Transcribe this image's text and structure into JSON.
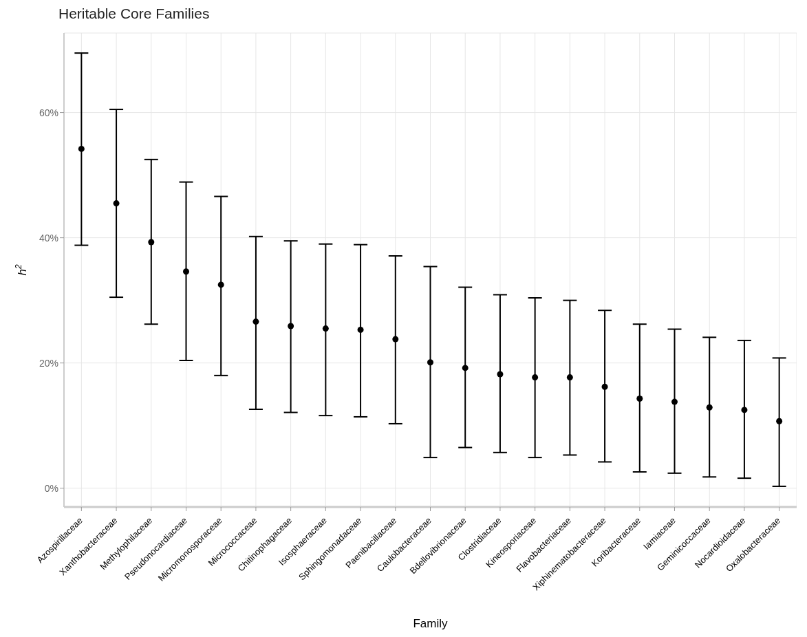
{
  "chart_data": {
    "type": "scatter",
    "title": "Heritable Core Families",
    "xlabel": "Family",
    "ylabel": "h$^{2}$",
    "categories": [
      "Azospirillaceae",
      "Xanthobacteraceae",
      "Methylophilaceae",
      "Pseudonocardiaceae",
      "Micromonosporaceae",
      "Micrococcaceae",
      "Chitinophagaceae",
      "Isosphaeraceae",
      "Sphingomonadaceae",
      "Paenibacillaceae",
      "Caulobacteraceae",
      "Bdellovibrionaceae",
      "Clostridiaceae",
      "Kineosporiaceae",
      "Flavobacteriaceae",
      "Xiphinematobacteraceae",
      "Koribacteraceae",
      "Iamiaceae",
      "Geminicoccaceae",
      "Nocardioidaceae",
      "Oxalobacteraceae"
    ],
    "values": [
      54.2,
      45.5,
      39.3,
      34.6,
      32.5,
      26.6,
      25.9,
      25.5,
      25.3,
      23.8,
      20.1,
      19.2,
      18.2,
      17.7,
      17.7,
      16.2,
      14.3,
      13.8,
      12.9,
      12.5,
      10.7
    ],
    "errors": [
      [
        38.8,
        69.5
      ],
      [
        30.5,
        60.5
      ],
      [
        26.2,
        52.5
      ],
      [
        20.4,
        48.9
      ],
      [
        18.0,
        46.6
      ],
      [
        12.6,
        40.2
      ],
      [
        12.1,
        39.5
      ],
      [
        11.6,
        39.0
      ],
      [
        11.4,
        38.9
      ],
      [
        10.3,
        37.1
      ],
      [
        4.9,
        35.4
      ],
      [
        6.5,
        32.1
      ],
      [
        5.7,
        30.9
      ],
      [
        4.9,
        30.4
      ],
      [
        5.3,
        30.0
      ],
      [
        4.2,
        28.4
      ],
      [
        2.6,
        26.2
      ],
      [
        2.4,
        25.4
      ],
      [
        1.8,
        24.1
      ],
      [
        1.6,
        23.6
      ],
      [
        0.3,
        20.8
      ]
    ],
    "color": "#000000",
    "marker": "circle",
    "grid": true,
    "ylim": [
      -3,
      72.7
    ],
    "yticks": [
      {
        "value": 0,
        "label": "0%"
      },
      {
        "value": 20,
        "label": "20%"
      },
      {
        "value": 40,
        "label": "40%"
      },
      {
        "value": 60,
        "label": "60%"
      }
    ]
  }
}
